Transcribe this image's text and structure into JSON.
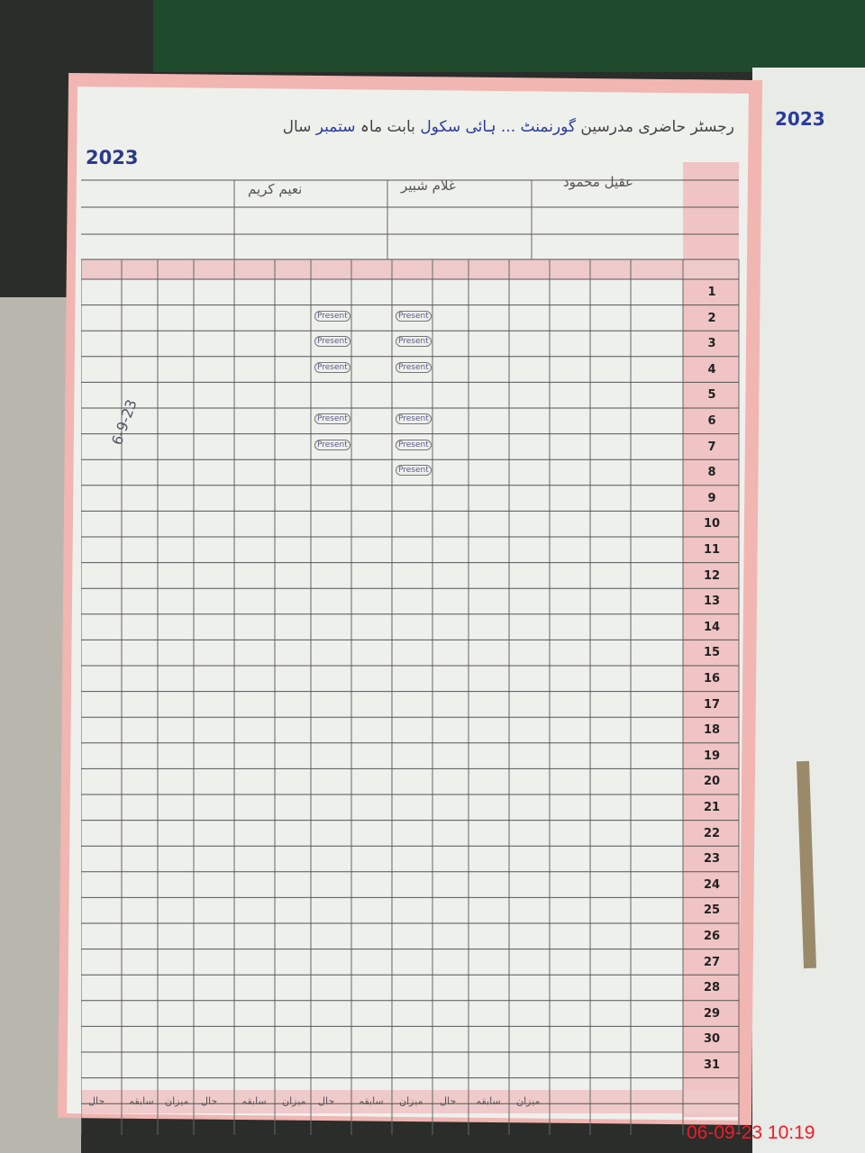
{
  "register": {
    "title_part1": "رجسٹر حاضری مدرسین",
    "school": "گورنمنٹ ... ہائی سکول",
    "title_part2": "بابت ماہ",
    "month": "ستمبر",
    "year_label": "سال",
    "year": "2023"
  },
  "teachers": [
    {
      "name": "عقیل محمود"
    },
    {
      "name": "غلام شبیر"
    },
    {
      "name": "نعیم کریم"
    }
  ],
  "days": [
    "1",
    "2",
    "3",
    "4",
    "5",
    "6",
    "7",
    "8",
    "9",
    "10",
    "11",
    "12",
    "13",
    "14",
    "15",
    "16",
    "17",
    "18",
    "19",
    "20",
    "21",
    "22",
    "23",
    "24",
    "25",
    "26",
    "27",
    "28",
    "29",
    "30",
    "31"
  ],
  "footer_labels": [
    "میزان",
    "سابقہ",
    "حال",
    "میزان",
    "سابقہ",
    "حال",
    "میزان",
    "سابقہ",
    "حال",
    "میزان",
    "سابقہ",
    "حال"
  ],
  "entry_label": "Present",
  "signature_date": "6-9-23",
  "right_page_year": "2023",
  "timestamp": "06-09-23  10:19"
}
